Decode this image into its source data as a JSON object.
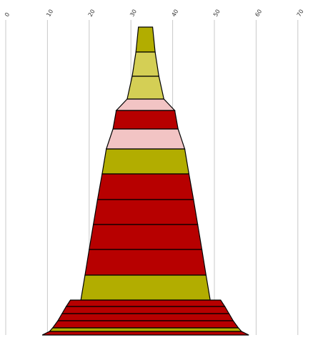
{
  "chart_data": {
    "type": "funnel",
    "title": "",
    "xlabel": "",
    "ylabel": "",
    "xlim": [
      0,
      70
    ],
    "ticks": [
      "0",
      "10",
      "20",
      "30",
      "40",
      "50",
      "60",
      "70"
    ],
    "tick_values": [
      0,
      10,
      20,
      30,
      40,
      50,
      60,
      70
    ],
    "grid": true,
    "legend": "none",
    "center": 33.5,
    "colors": {
      "olive": "#b2ad00",
      "light_olive": "#d4cf55",
      "pink": "#f2c4c4",
      "red": "#b70000"
    },
    "bands": [
      {
        "top_width": 3.4,
        "bottom_width": 4.6,
        "color": "olive"
      },
      {
        "top_width": 4.6,
        "bottom_width": 6.4,
        "color": "light_olive"
      },
      {
        "top_width": 6.4,
        "bottom_width": 8.8,
        "color": "light_olive"
      },
      {
        "top_width": 8.8,
        "bottom_width": 14.0,
        "color": "pink"
      },
      {
        "top_width": 14.0,
        "bottom_width": 15.6,
        "color": "red"
      },
      {
        "top_width": 15.6,
        "bottom_width": 18.8,
        "color": "pink"
      },
      {
        "top_width": 18.8,
        "bottom_width": 20.8,
        "color": "olive"
      },
      {
        "top_width": 20.8,
        "bottom_width": 23.0,
        "color": "red"
      },
      {
        "top_width": 23.0,
        "bottom_width": 25.0,
        "color": "red"
      },
      {
        "top_width": 25.0,
        "bottom_width": 27.0,
        "color": "red"
      },
      {
        "top_width": 27.0,
        "bottom_width": 29.0,
        "color": "red"
      },
      {
        "top_width": 29.0,
        "bottom_width": 31.0,
        "color": "olive"
      },
      {
        "top_width": 36.0,
        "bottom_width": 38.0,
        "color": "red"
      },
      {
        "top_width": 38.0,
        "bottom_width": 40.0,
        "color": "red"
      },
      {
        "top_width": 40.0,
        "bottom_width": 42.0,
        "color": "red"
      },
      {
        "top_width": 42.0,
        "bottom_width": 44.5,
        "color": "red"
      },
      {
        "top_width": 44.5,
        "bottom_width": 46.0,
        "color": "olive"
      },
      {
        "top_width": 46.0,
        "bottom_width": 49.5,
        "color": "red"
      }
    ]
  }
}
